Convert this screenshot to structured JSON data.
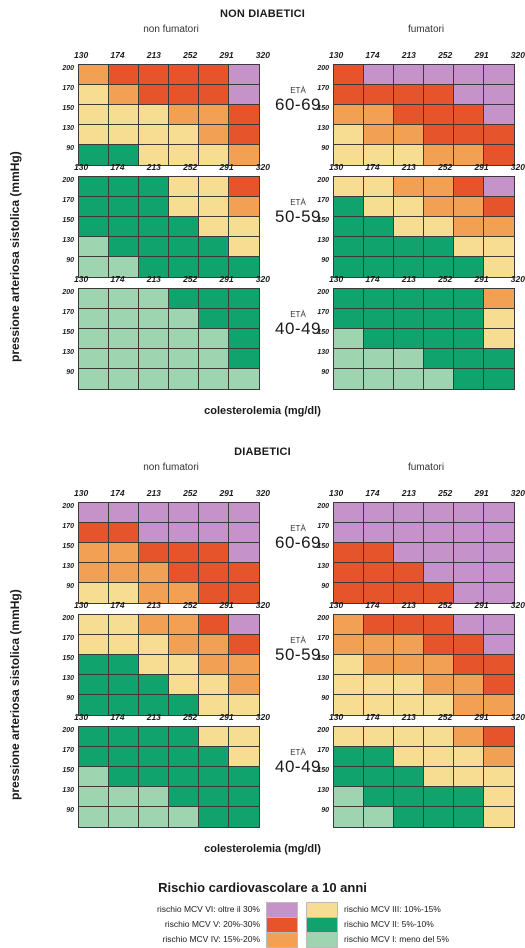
{
  "colors": {
    "1": "#9fd4b0",
    "2": "#11a36e",
    "3": "#f7dd92",
    "4": "#f2a054",
    "5": "#e6542c",
    "6": "#c592c9"
  },
  "sections": [
    {
      "title": "NON DIABETICI",
      "left_label": "non fumatori",
      "right_label": "fumatori",
      "ylabel": "pressione arteriosa sistolica (mmHg)",
      "xlabel": "colesterolemia (mg/dl)"
    },
    {
      "title": "DIABETICI",
      "left_label": "non fumatori",
      "right_label": "fumatori",
      "ylabel": "pressione arteriosa sistolica (mmHg)",
      "xlabel": "colesterolemia (mg/dl)"
    }
  ],
  "age_prefix": "ETÀ",
  "legend": {
    "title": "Rischio cardiovascolare a 10 anni",
    "items": [
      {
        "label": "rischio MCV VI: oltre il 30%",
        "level": 6
      },
      {
        "label": "rischio MCV V: 20%-30%",
        "level": 5
      },
      {
        "label": "rischio MCV IV: 15%-20%",
        "level": 4
      },
      {
        "label": "rischio MCV III: 10%-15%",
        "level": 3
      },
      {
        "label": "rischio MCV II: 5%-10%",
        "level": 2
      },
      {
        "label": "rischio MCV I: meno del 5%",
        "level": 1
      }
    ]
  },
  "chart_data": {
    "type": "heatmap",
    "x_ticks": [
      "130",
      "174",
      "213",
      "252",
      "291",
      "320"
    ],
    "y_ticks": [
      "200",
      "170",
      "150",
      "130",
      "90"
    ],
    "panels": [
      {
        "section": "NON DIABETICI",
        "group": "non fumatori",
        "age": "60-69",
        "grid": [
          [
            4,
            5,
            5,
            5,
            5,
            6
          ],
          [
            3,
            4,
            5,
            5,
            5,
            6
          ],
          [
            3,
            3,
            3,
            4,
            4,
            5
          ],
          [
            3,
            3,
            3,
            3,
            4,
            5
          ],
          [
            2,
            2,
            3,
            3,
            3,
            4
          ]
        ]
      },
      {
        "section": "NON DIABETICI",
        "group": "fumatori",
        "age": "60-69",
        "grid": [
          [
            5,
            6,
            6,
            6,
            6,
            6
          ],
          [
            5,
            5,
            5,
            5,
            6,
            6
          ],
          [
            4,
            4,
            5,
            5,
            5,
            6
          ],
          [
            3,
            4,
            4,
            5,
            5,
            5
          ],
          [
            3,
            3,
            3,
            4,
            4,
            5
          ]
        ]
      },
      {
        "section": "NON DIABETICI",
        "group": "non fumatori",
        "age": "50-59",
        "grid": [
          [
            2,
            2,
            2,
            3,
            3,
            5
          ],
          [
            2,
            2,
            2,
            3,
            3,
            4
          ],
          [
            2,
            2,
            2,
            2,
            3,
            3
          ],
          [
            1,
            2,
            2,
            2,
            2,
            3
          ],
          [
            1,
            1,
            2,
            2,
            2,
            2
          ]
        ]
      },
      {
        "section": "NON DIABETICI",
        "group": "fumatori",
        "age": "50-59",
        "grid": [
          [
            3,
            3,
            4,
            4,
            5,
            6
          ],
          [
            2,
            3,
            3,
            4,
            4,
            5
          ],
          [
            2,
            2,
            3,
            3,
            4,
            4
          ],
          [
            2,
            2,
            2,
            2,
            3,
            3
          ],
          [
            2,
            2,
            2,
            2,
            2,
            3
          ]
        ]
      },
      {
        "section": "NON DIABETICI",
        "group": "non fumatori",
        "age": "40-49",
        "grid": [
          [
            1,
            1,
            1,
            2,
            2,
            2
          ],
          [
            1,
            1,
            1,
            1,
            2,
            2
          ],
          [
            1,
            1,
            1,
            1,
            1,
            2
          ],
          [
            1,
            1,
            1,
            1,
            1,
            2
          ],
          [
            1,
            1,
            1,
            1,
            1,
            1
          ]
        ]
      },
      {
        "section": "NON DIABETICI",
        "group": "fumatori",
        "age": "40-49",
        "grid": [
          [
            2,
            2,
            2,
            2,
            2,
            4
          ],
          [
            2,
            2,
            2,
            2,
            2,
            3
          ],
          [
            1,
            2,
            2,
            2,
            2,
            3
          ],
          [
            1,
            1,
            1,
            2,
            2,
            2
          ],
          [
            1,
            1,
            1,
            1,
            2,
            2
          ]
        ]
      },
      {
        "section": "DIABETICI",
        "group": "non fumatori",
        "age": "60-69",
        "grid": [
          [
            6,
            6,
            6,
            6,
            6,
            6
          ],
          [
            5,
            5,
            6,
            6,
            6,
            6
          ],
          [
            4,
            4,
            5,
            5,
            5,
            6
          ],
          [
            4,
            4,
            4,
            5,
            5,
            5
          ],
          [
            3,
            3,
            4,
            4,
            5,
            5
          ]
        ]
      },
      {
        "section": "DIABETICI",
        "group": "fumatori",
        "age": "60-69",
        "grid": [
          [
            6,
            6,
            6,
            6,
            6,
            6
          ],
          [
            6,
            6,
            6,
            6,
            6,
            6
          ],
          [
            5,
            5,
            6,
            6,
            6,
            6
          ],
          [
            5,
            5,
            5,
            6,
            6,
            6
          ],
          [
            5,
            5,
            5,
            5,
            6,
            6
          ]
        ]
      },
      {
        "section": "DIABETICI",
        "group": "non fumatori",
        "age": "50-59",
        "grid": [
          [
            3,
            3,
            4,
            4,
            5,
            6
          ],
          [
            3,
            3,
            3,
            4,
            4,
            5
          ],
          [
            2,
            2,
            3,
            3,
            4,
            4
          ],
          [
            2,
            2,
            2,
            3,
            3,
            4
          ],
          [
            2,
            2,
            2,
            2,
            3,
            3
          ]
        ]
      },
      {
        "section": "DIABETICI",
        "group": "fumatori",
        "age": "50-59",
        "grid": [
          [
            4,
            5,
            5,
            5,
            6,
            6
          ],
          [
            4,
            4,
            4,
            5,
            5,
            6
          ],
          [
            3,
            4,
            4,
            4,
            5,
            5
          ],
          [
            3,
            3,
            3,
            4,
            4,
            5
          ],
          [
            3,
            3,
            3,
            3,
            4,
            4
          ]
        ]
      },
      {
        "section": "DIABETICI",
        "group": "non fumatori",
        "age": "40-49",
        "grid": [
          [
            2,
            2,
            2,
            2,
            3,
            3
          ],
          [
            2,
            2,
            2,
            2,
            2,
            3
          ],
          [
            1,
            2,
            2,
            2,
            2,
            2
          ],
          [
            1,
            1,
            1,
            2,
            2,
            2
          ],
          [
            1,
            1,
            1,
            1,
            2,
            2
          ]
        ]
      },
      {
        "section": "DIABETICI",
        "group": "fumatori",
        "age": "40-49",
        "grid": [
          [
            3,
            3,
            3,
            3,
            4,
            5
          ],
          [
            2,
            2,
            3,
            3,
            3,
            4
          ],
          [
            2,
            2,
            2,
            3,
            3,
            3
          ],
          [
            1,
            2,
            2,
            2,
            2,
            3
          ],
          [
            1,
            1,
            2,
            2,
            2,
            3
          ]
        ]
      }
    ]
  }
}
